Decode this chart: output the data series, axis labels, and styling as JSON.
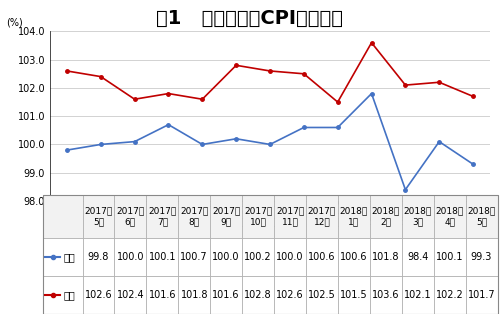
{
  "title": "图1   青岛市月度CPI走势情况",
  "ylabel": "(%)",
  "x_labels": [
    "2017年\n5月",
    "2017年\n6月",
    "2017年\n7月",
    "2017年\n8月",
    "2017年\n9月",
    "2017年\n10月",
    "2017年\n11月",
    "2017年\n12月",
    "2018年\n1月",
    "2018年\n2月",
    "2018年\n3月",
    "2018年\n4月",
    "2018年\n5月"
  ],
  "huanbi": [
    99.8,
    100.0,
    100.1,
    100.7,
    100.0,
    100.2,
    100.0,
    100.6,
    100.6,
    101.8,
    98.4,
    100.1,
    99.3
  ],
  "tongbi": [
    102.6,
    102.4,
    101.6,
    101.8,
    101.6,
    102.8,
    102.6,
    102.5,
    101.5,
    103.6,
    102.1,
    102.2,
    101.7
  ],
  "huanbi_color": "#4472C4",
  "tongbi_color": "#C00000",
  "ylim_min": 98.0,
  "ylim_max": 104.0,
  "yticks": [
    98.0,
    99.0,
    100.0,
    101.0,
    102.0,
    103.0,
    104.0
  ],
  "legend_huanbi": "环比",
  "legend_tongbi": "同比",
  "huanbi_values": [
    "99.8",
    "100.0",
    "100.1",
    "100.7",
    "100.0",
    "100.2",
    "100.0",
    "100.6",
    "100.6",
    "101.8",
    "98.4",
    "100.1",
    "99.3"
  ],
  "tongbi_values": [
    "102.6",
    "102.4",
    "101.6",
    "101.8",
    "101.6",
    "102.8",
    "102.6",
    "102.5",
    "101.5",
    "103.6",
    "102.1",
    "102.2",
    "101.7"
  ],
  "background_color": "#FFFFFF",
  "grid_color": "#C0C0C0",
  "title_fontsize": 14,
  "axis_fontsize": 7,
  "table_fontsize": 7
}
